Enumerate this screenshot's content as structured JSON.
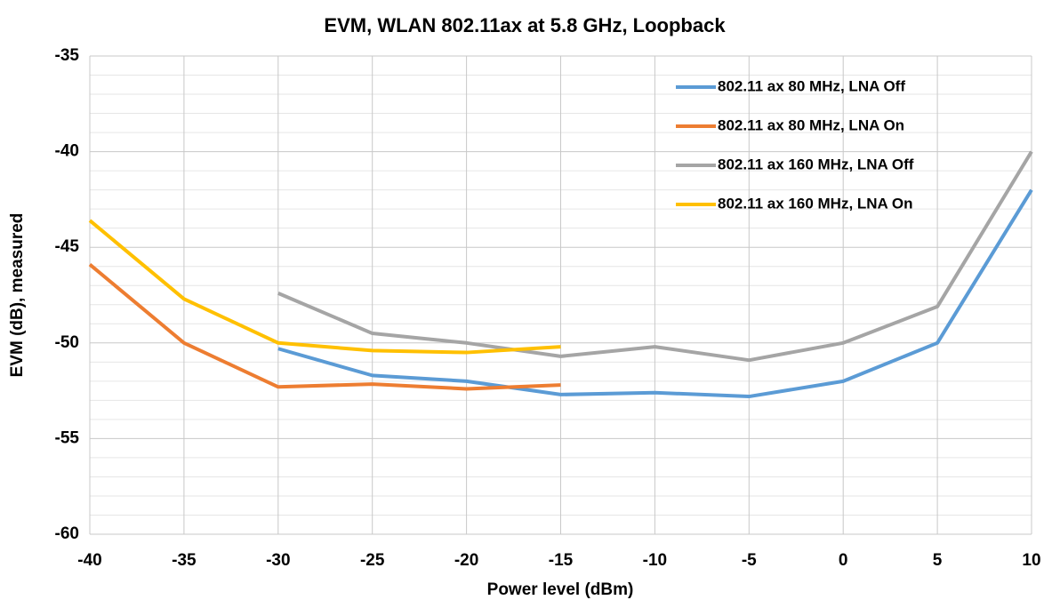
{
  "chart_data": {
    "type": "line",
    "title": "EVM, WLAN 802.11ax at 5.8 GHz, Loopback",
    "x_label": "Power level (dBm)",
    "y_label": "EVM (dB), measured",
    "x": [
      -40,
      -35,
      -30,
      -25,
      -20,
      -15,
      -10,
      -5,
      0,
      5,
      10
    ],
    "series": [
      {
        "name": "802.11 ax 80 MHz, LNA Off",
        "color": "#5b9bd5",
        "values": [
          null,
          null,
          -50.3,
          -51.7,
          -52,
          -52.7,
          -52.6,
          -52.8,
          -52,
          -50,
          -42
        ]
      },
      {
        "name": "802.11 ax 80 MHz, LNA On",
        "color": "#ed7d31",
        "values": [
          -45.9,
          -50,
          -52.3,
          -52.15,
          -52.4,
          -52.2,
          null,
          null,
          null,
          null,
          null
        ]
      },
      {
        "name": "802.11 ax 160 MHz, LNA Off",
        "color": "#a5a5a5",
        "values": [
          null,
          null,
          -47.4,
          -49.5,
          -50,
          -50.7,
          -50.2,
          -50.9,
          -50,
          -48.1,
          -40
        ]
      },
      {
        "name": "802.11 ax 160 MHz, LNA On",
        "color": "#ffc000",
        "values": [
          -43.6,
          -47.7,
          -50,
          -50.4,
          -50.5,
          -50.2,
          null,
          null,
          null,
          null,
          null
        ]
      }
    ],
    "xlim": [
      -40,
      10
    ],
    "xticks": [
      -40,
      -35,
      -30,
      -25,
      -20,
      -15,
      -10,
      -5,
      0,
      5,
      10
    ],
    "ylim": [
      -60,
      -35
    ],
    "yticks": [
      -60,
      -55,
      -50,
      -45,
      -40,
      -35
    ],
    "grid": true,
    "minor_grid": true,
    "legend": "top-right"
  }
}
